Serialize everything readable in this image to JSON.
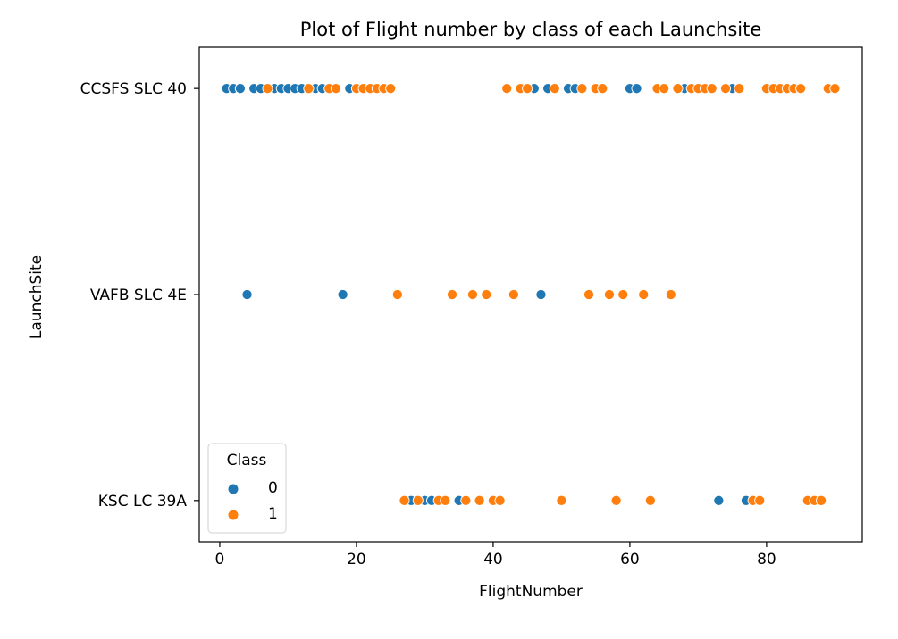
{
  "chart_data": {
    "type": "scatter",
    "title": "Plot of Flight number by class of each Launchsite",
    "xlabel": "FlightNumber",
    "ylabel": "LaunchSite",
    "xlim": [
      -3,
      94
    ],
    "xticks": [
      0,
      20,
      40,
      60,
      80
    ],
    "categories": [
      "CCSFS SLC 40",
      "VAFB SLC 4E",
      "KSC LC 39A"
    ],
    "legend": {
      "title": "Class",
      "placement": "lower-left",
      "entries": [
        "0",
        "1"
      ]
    },
    "colors": {
      "0": "#1f77b4",
      "1": "#ff7f0e"
    },
    "grid": false,
    "series": [
      {
        "name": "0",
        "points": [
          {
            "x": 1,
            "site": "CCSFS SLC 40"
          },
          {
            "x": 2,
            "site": "CCSFS SLC 40"
          },
          {
            "x": 3,
            "site": "CCSFS SLC 40"
          },
          {
            "x": 5,
            "site": "CCSFS SLC 40"
          },
          {
            "x": 6,
            "site": "CCSFS SLC 40"
          },
          {
            "x": 8,
            "site": "CCSFS SLC 40"
          },
          {
            "x": 9,
            "site": "CCSFS SLC 40"
          },
          {
            "x": 10,
            "site": "CCSFS SLC 40"
          },
          {
            "x": 11,
            "site": "CCSFS SLC 40"
          },
          {
            "x": 12,
            "site": "CCSFS SLC 40"
          },
          {
            "x": 14,
            "site": "CCSFS SLC 40"
          },
          {
            "x": 15,
            "site": "CCSFS SLC 40"
          },
          {
            "x": 19,
            "site": "CCSFS SLC 40"
          },
          {
            "x": 46,
            "site": "CCSFS SLC 40"
          },
          {
            "x": 48,
            "site": "CCSFS SLC 40"
          },
          {
            "x": 51,
            "site": "CCSFS SLC 40"
          },
          {
            "x": 52,
            "site": "CCSFS SLC 40"
          },
          {
            "x": 60,
            "site": "CCSFS SLC 40"
          },
          {
            "x": 61,
            "site": "CCSFS SLC 40"
          },
          {
            "x": 68,
            "site": "CCSFS SLC 40"
          },
          {
            "x": 75,
            "site": "CCSFS SLC 40"
          },
          {
            "x": 4,
            "site": "VAFB SLC 4E"
          },
          {
            "x": 18,
            "site": "VAFB SLC 4E"
          },
          {
            "x": 47,
            "site": "VAFB SLC 4E"
          },
          {
            "x": 28,
            "site": "KSC LC 39A"
          },
          {
            "x": 30,
            "site": "KSC LC 39A"
          },
          {
            "x": 31,
            "site": "KSC LC 39A"
          },
          {
            "x": 35,
            "site": "KSC LC 39A"
          },
          {
            "x": 73,
            "site": "KSC LC 39A"
          },
          {
            "x": 77,
            "site": "KSC LC 39A"
          }
        ]
      },
      {
        "name": "1",
        "points": [
          {
            "x": 7,
            "site": "CCSFS SLC 40"
          },
          {
            "x": 13,
            "site": "CCSFS SLC 40"
          },
          {
            "x": 16,
            "site": "CCSFS SLC 40"
          },
          {
            "x": 17,
            "site": "CCSFS SLC 40"
          },
          {
            "x": 20,
            "site": "CCSFS SLC 40"
          },
          {
            "x": 21,
            "site": "CCSFS SLC 40"
          },
          {
            "x": 22,
            "site": "CCSFS SLC 40"
          },
          {
            "x": 23,
            "site": "CCSFS SLC 40"
          },
          {
            "x": 24,
            "site": "CCSFS SLC 40"
          },
          {
            "x": 25,
            "site": "CCSFS SLC 40"
          },
          {
            "x": 42,
            "site": "CCSFS SLC 40"
          },
          {
            "x": 44,
            "site": "CCSFS SLC 40"
          },
          {
            "x": 45,
            "site": "CCSFS SLC 40"
          },
          {
            "x": 49,
            "site": "CCSFS SLC 40"
          },
          {
            "x": 53,
            "site": "CCSFS SLC 40"
          },
          {
            "x": 55,
            "site": "CCSFS SLC 40"
          },
          {
            "x": 56,
            "site": "CCSFS SLC 40"
          },
          {
            "x": 64,
            "site": "CCSFS SLC 40"
          },
          {
            "x": 65,
            "site": "CCSFS SLC 40"
          },
          {
            "x": 67,
            "site": "CCSFS SLC 40"
          },
          {
            "x": 69,
            "site": "CCSFS SLC 40"
          },
          {
            "x": 70,
            "site": "CCSFS SLC 40"
          },
          {
            "x": 71,
            "site": "CCSFS SLC 40"
          },
          {
            "x": 72,
            "site": "CCSFS SLC 40"
          },
          {
            "x": 74,
            "site": "CCSFS SLC 40"
          },
          {
            "x": 76,
            "site": "CCSFS SLC 40"
          },
          {
            "x": 80,
            "site": "CCSFS SLC 40"
          },
          {
            "x": 81,
            "site": "CCSFS SLC 40"
          },
          {
            "x": 82,
            "site": "CCSFS SLC 40"
          },
          {
            "x": 83,
            "site": "CCSFS SLC 40"
          },
          {
            "x": 84,
            "site": "CCSFS SLC 40"
          },
          {
            "x": 85,
            "site": "CCSFS SLC 40"
          },
          {
            "x": 89,
            "site": "CCSFS SLC 40"
          },
          {
            "x": 90,
            "site": "CCSFS SLC 40"
          },
          {
            "x": 26,
            "site": "VAFB SLC 4E"
          },
          {
            "x": 34,
            "site": "VAFB SLC 4E"
          },
          {
            "x": 37,
            "site": "VAFB SLC 4E"
          },
          {
            "x": 39,
            "site": "VAFB SLC 4E"
          },
          {
            "x": 43,
            "site": "VAFB SLC 4E"
          },
          {
            "x": 54,
            "site": "VAFB SLC 4E"
          },
          {
            "x": 57,
            "site": "VAFB SLC 4E"
          },
          {
            "x": 59,
            "site": "VAFB SLC 4E"
          },
          {
            "x": 62,
            "site": "VAFB SLC 4E"
          },
          {
            "x": 66,
            "site": "VAFB SLC 4E"
          },
          {
            "x": 27,
            "site": "KSC LC 39A"
          },
          {
            "x": 29,
            "site": "KSC LC 39A"
          },
          {
            "x": 32,
            "site": "KSC LC 39A"
          },
          {
            "x": 33,
            "site": "KSC LC 39A"
          },
          {
            "x": 36,
            "site": "KSC LC 39A"
          },
          {
            "x": 38,
            "site": "KSC LC 39A"
          },
          {
            "x": 40,
            "site": "KSC LC 39A"
          },
          {
            "x": 41,
            "site": "KSC LC 39A"
          },
          {
            "x": 50,
            "site": "KSC LC 39A"
          },
          {
            "x": 58,
            "site": "KSC LC 39A"
          },
          {
            "x": 63,
            "site": "KSC LC 39A"
          },
          {
            "x": 78,
            "site": "KSC LC 39A"
          },
          {
            "x": 79,
            "site": "KSC LC 39A"
          },
          {
            "x": 86,
            "site": "KSC LC 39A"
          },
          {
            "x": 87,
            "site": "KSC LC 39A"
          },
          {
            "x": 88,
            "site": "KSC LC 39A"
          }
        ]
      }
    ]
  }
}
